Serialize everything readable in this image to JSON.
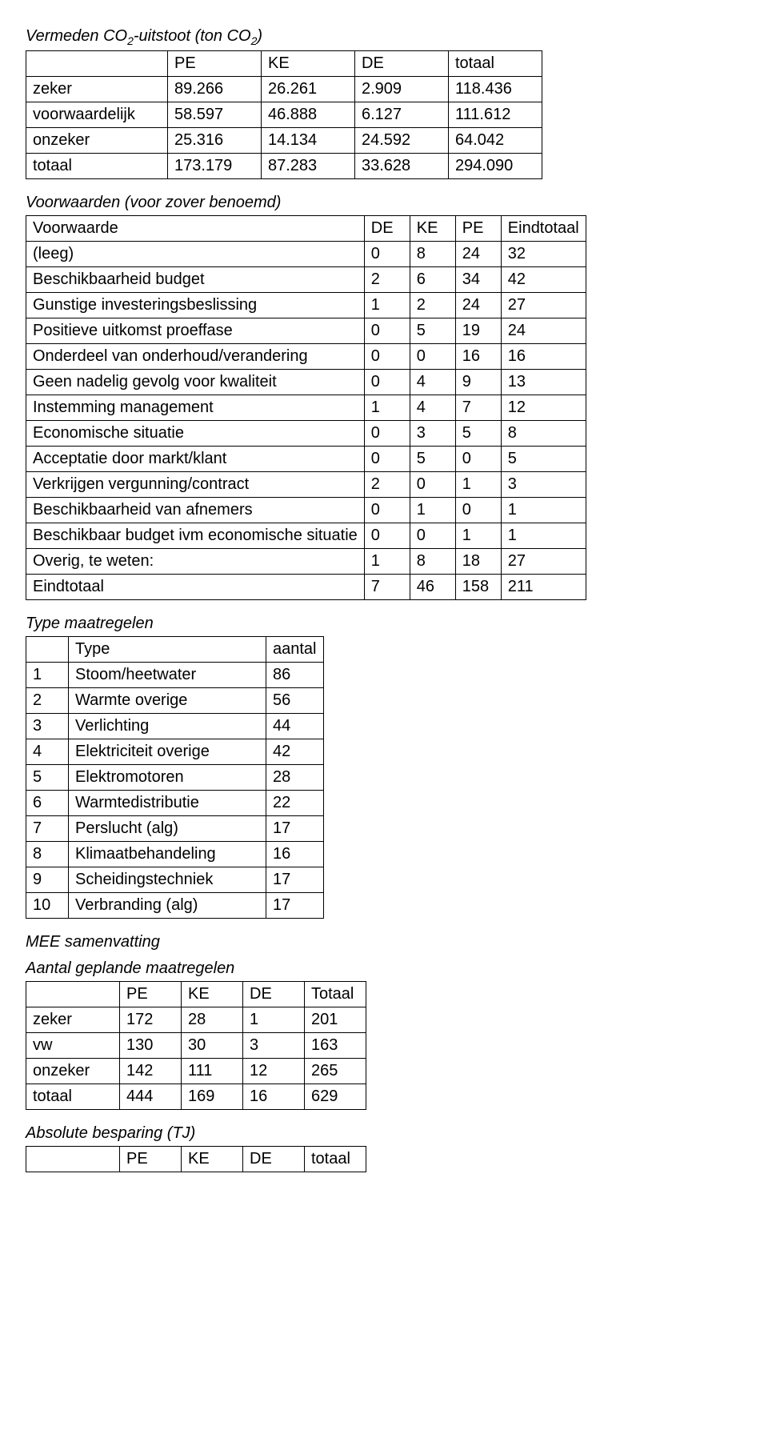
{
  "section1_title_html": "Vermeden CO<sub>2</sub>-uitstoot (ton CO<sub>2</sub>)",
  "t1": {
    "headers": [
      "",
      "PE",
      "KE",
      "DE",
      "totaal"
    ],
    "rows": [
      [
        "zeker",
        "89.266",
        "26.261",
        "2.909",
        "118.436"
      ],
      [
        "voorwaardelijk",
        "58.597",
        "46.888",
        "6.127",
        "111.612"
      ],
      [
        "onzeker",
        "25.316",
        "14.134",
        "24.592",
        "64.042"
      ],
      [
        "totaal",
        "173.179",
        "87.283",
        "33.628",
        "294.090"
      ]
    ]
  },
  "section2_title": "Voorwaarden (voor zover benoemd)",
  "t2": {
    "headers": [
      "Voorwaarde",
      "DE",
      "KE",
      "PE",
      "Eindtotaal"
    ],
    "rows": [
      [
        "(leeg)",
        "0",
        "8",
        "24",
        "32"
      ],
      [
        "Beschikbaarheid budget",
        "2",
        "6",
        "34",
        "42"
      ],
      [
        "Gunstige investeringsbeslissing",
        "1",
        "2",
        "24",
        "27"
      ],
      [
        "Positieve uitkomst proeffase",
        "0",
        "5",
        "19",
        "24"
      ],
      [
        "Onderdeel van onderhoud/verandering",
        "0",
        "0",
        "16",
        "16"
      ],
      [
        "Geen nadelig gevolg voor kwaliteit",
        "0",
        "4",
        "9",
        "13"
      ],
      [
        "Instemming management",
        "1",
        "4",
        "7",
        "12"
      ],
      [
        "Economische situatie",
        "0",
        "3",
        "5",
        "8"
      ],
      [
        "Acceptatie door markt/klant",
        "0",
        "5",
        "0",
        "5"
      ],
      [
        "Verkrijgen vergunning/contract",
        "2",
        "0",
        "1",
        "3"
      ],
      [
        "Beschikbaarheid van afnemers",
        "0",
        "1",
        "0",
        "1"
      ],
      [
        "Beschikbaar budget ivm economische situatie",
        "0",
        "0",
        "1",
        "1"
      ],
      [
        "Overig, te weten:",
        "1",
        "8",
        "18",
        "27"
      ],
      [
        "Eindtotaal",
        "7",
        "46",
        "158",
        "211"
      ]
    ]
  },
  "section3_title": "Type maatregelen",
  "t3": {
    "headers": [
      "",
      "Type",
      "aantal"
    ],
    "rows": [
      [
        "1",
        "Stoom/heetwater",
        "86"
      ],
      [
        "2",
        "Warmte overige",
        "56"
      ],
      [
        "3",
        "Verlichting",
        "44"
      ],
      [
        "4",
        "Elektriciteit overige",
        "42"
      ],
      [
        "5",
        "Elektromotoren",
        "28"
      ],
      [
        "6",
        "Warmtedistributie",
        "22"
      ],
      [
        "7",
        "Perslucht (alg)",
        "17"
      ],
      [
        "8",
        "Klimaatbehandeling",
        "16"
      ],
      [
        "9",
        "Scheidingstechniek",
        "17"
      ],
      [
        "10",
        "Verbranding (alg)",
        "17"
      ]
    ]
  },
  "section4_title": "MEE samenvatting",
  "section5_title": "Aantal geplande maatregelen",
  "t4": {
    "headers": [
      "",
      "PE",
      "KE",
      "DE",
      "Totaal"
    ],
    "rows": [
      [
        "zeker",
        "172",
        "28",
        "1",
        "201"
      ],
      [
        "vw",
        "130",
        "30",
        "3",
        "163"
      ],
      [
        "onzeker",
        "142",
        "111",
        "12",
        "265"
      ],
      [
        "totaal",
        "444",
        "169",
        "16",
        "629"
      ]
    ]
  },
  "section6_title": "Absolute besparing (TJ)",
  "t5": {
    "headers": [
      "",
      "PE",
      "KE",
      "DE",
      "totaal"
    ]
  }
}
